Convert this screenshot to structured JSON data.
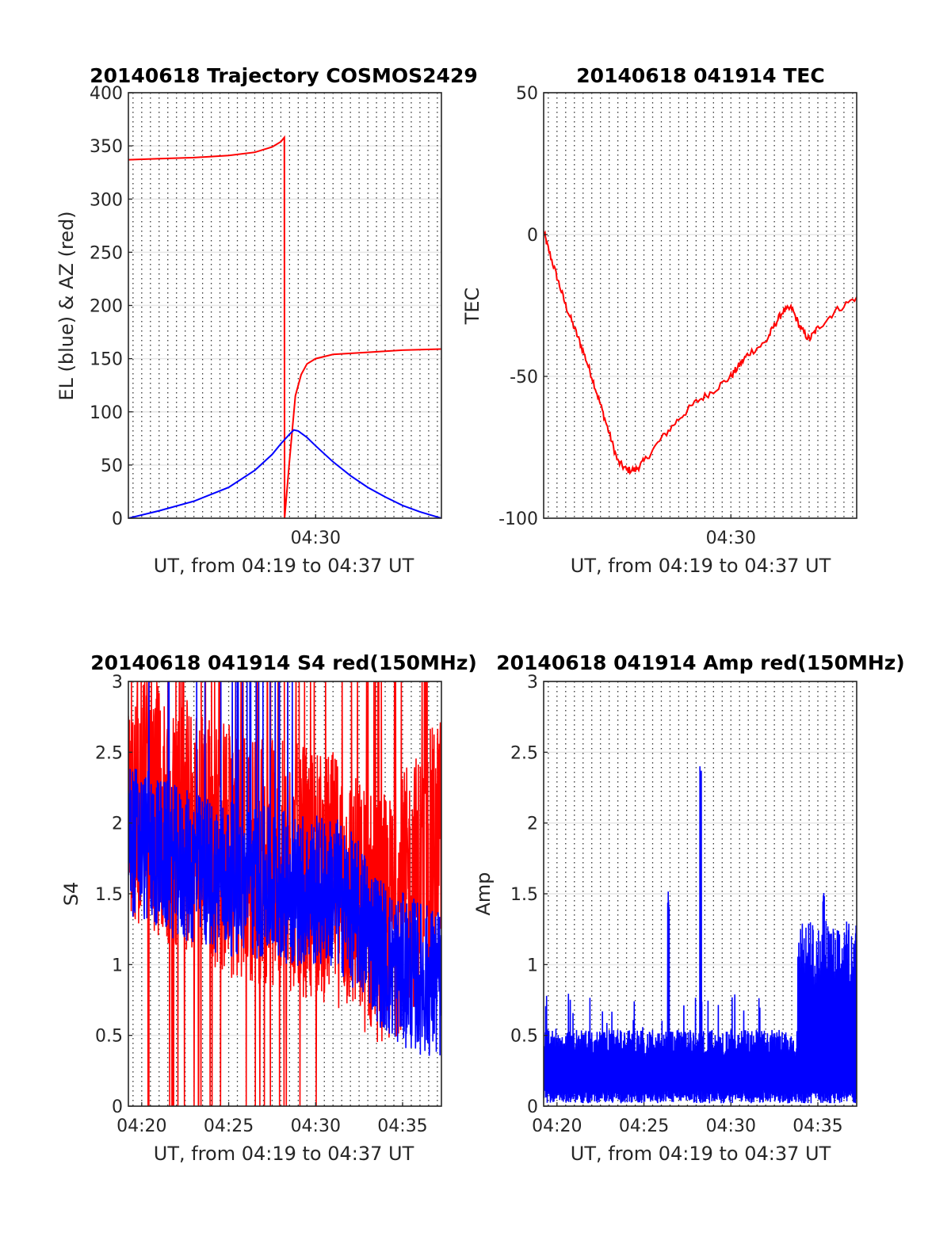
{
  "figure": {
    "colors": {
      "el": "#0000ff",
      "az": "#ff0000",
      "tec": "#ff0000",
      "s4_red": "#ff0000",
      "s4_blue": "#0000ff",
      "amp": "#0000ff",
      "grid": "#262626"
    }
  },
  "chart_data": [
    {
      "type": "line",
      "title": "20140618 Trajectory COSMOS2429",
      "xlabel": "UT, from 04:19 to 04:37 UT",
      "ylabel": "EL (blue) & AZ (red)",
      "xlim": [
        "04:19:14",
        "04:37:14"
      ],
      "ylim": [
        0,
        400
      ],
      "yticks": [
        "0",
        "50",
        "100",
        "150",
        "200",
        "250",
        "300",
        "350",
        "400"
      ],
      "xticks": [
        "04:30"
      ],
      "grid": "x dotted major+minor, y solid",
      "series": [
        {
          "color": "#ff0000",
          "x": [
            "04:19:14",
            "04:21:00",
            "04:23:00",
            "04:25:00",
            "04:26:30",
            "04:27:30",
            "04:28:00",
            "04:28:12",
            "04:28:13",
            "04:28:30",
            "04:28:50",
            "04:29:10",
            "04:29:30",
            "04:30:00",
            "04:31:00",
            "04:33:00",
            "04:35:00",
            "04:37:14"
          ],
          "y": [
            337,
            338,
            339,
            341,
            344,
            349,
            354,
            358,
            0,
            55,
            115,
            135,
            145,
            150,
            154,
            156,
            158,
            159
          ]
        },
        {
          "color": "#0000ff",
          "x": [
            "04:19:14",
            "04:21:00",
            "04:23:00",
            "04:25:00",
            "04:26:30",
            "04:27:30",
            "04:28:00",
            "04:28:30",
            "04:28:45",
            "04:29:00",
            "04:29:30",
            "04:30:00",
            "04:31:00",
            "04:32:00",
            "04:33:00",
            "04:34:00",
            "04:35:00",
            "04:36:00",
            "04:37:14"
          ],
          "y": [
            0,
            7,
            16,
            29,
            45,
            60,
            70,
            79,
            83,
            82,
            76,
            68,
            53,
            40,
            29,
            20,
            12,
            6,
            0
          ]
        }
      ]
    },
    {
      "type": "line",
      "title": "20140618 041914 TEC",
      "xlabel": "UT, from 04:19 to 04:37 UT",
      "ylabel": "TEC",
      "xlim": [
        "04:19:14",
        "04:37:14"
      ],
      "ylim": [
        -100,
        50
      ],
      "yticks": [
        "-100",
        "-50",
        "0",
        "50"
      ],
      "xticks": [
        "04:30"
      ],
      "grid": "x dotted major+minor, y solid",
      "series": [
        {
          "color": "#ff0000",
          "x": [
            "04:19:14",
            "04:19:30",
            "04:20:00",
            "04:20:30",
            "04:21:00",
            "04:21:30",
            "04:22:00",
            "04:22:30",
            "04:23:00",
            "04:23:30",
            "04:24:00",
            "04:24:30",
            "04:25:00",
            "04:26:00",
            "04:27:00",
            "04:28:00",
            "04:29:00",
            "04:30:00",
            "04:30:30",
            "04:31:00",
            "04:32:00",
            "04:32:30",
            "04:33:00",
            "04:33:30",
            "04:34:00",
            "04:34:30",
            "04:35:00",
            "04:36:00",
            "04:37:14"
          ],
          "y": [
            1,
            -5,
            -15,
            -25,
            -33,
            -41,
            -50,
            -60,
            -70,
            -80,
            -83,
            -83,
            -80,
            -72,
            -65,
            -59,
            -55,
            -50,
            -46,
            -42,
            -38,
            -32,
            -27,
            -26,
            -33,
            -37,
            -33,
            -27,
            -22
          ]
        }
      ]
    },
    {
      "type": "line",
      "title": "20140618 041914 S4 red(150MHz)",
      "xlabel": "UT, from 04:19 to 04:37 UT",
      "ylabel": "S4",
      "xlim": [
        "04:19:14",
        "04:37:14"
      ],
      "ylim": [
        0,
        3
      ],
      "yticks": [
        "0",
        "0.5",
        "1",
        "1.5",
        "2",
        "2.5",
        "3"
      ],
      "xticks": [
        "04:20",
        "04:25",
        "04:30",
        "04:35"
      ],
      "grid": "x dotted major+minor, y solid",
      "series": [
        {
          "color": "#ff0000",
          "description_values": {
            "x_minutes_after_start": [
              0,
              3,
              6,
              9,
              12,
              13.5,
              15,
              18
            ],
            "level": [
              2.2,
              2.0,
              1.8,
              1.7,
              1.6,
              1.4,
              1.3,
              1.9
            ]
          }
        },
        {
          "color": "#0000ff",
          "description_values": {
            "x_minutes_after_start": [
              0,
              3,
              6,
              9,
              12,
              13.5,
              15,
              18
            ],
            "level": [
              1.9,
              1.7,
              1.6,
              1.55,
              1.5,
              1.3,
              1.0,
              0.85
            ]
          }
        }
      ]
    },
    {
      "type": "line",
      "title": "20140618 041914 Amp red(150MHz)",
      "xlabel": "UT, from 04:19 to 04:37 UT",
      "ylabel": "Amp",
      "xlim": [
        "04:19:14",
        "04:37:14"
      ],
      "ylim": [
        0,
        3
      ],
      "yticks": [
        "0",
        "0.5",
        "1",
        "1.5",
        "2",
        "2.5",
        "3"
      ],
      "xticks": [
        "04:20",
        "04:25",
        "04:30",
        "04:35"
      ],
      "grid": "x dotted major+minor, y solid",
      "series": [
        {
          "color": "#0000ff",
          "peaks": [
            {
              "x": "04:26:25",
              "y": 1.53
            },
            {
              "x": "04:28:15",
              "y": 2.43
            },
            {
              "x": "04:35:20",
              "y": 1.59
            }
          ],
          "baseline_level": 0.45,
          "late_level": 1.1
        }
      ]
    }
  ]
}
